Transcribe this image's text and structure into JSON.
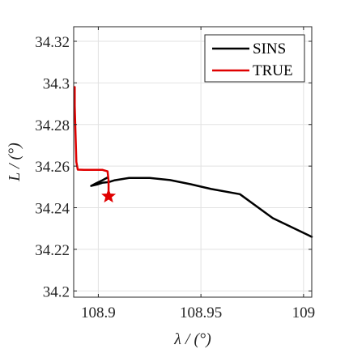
{
  "chart_data": {
    "type": "line",
    "title": "",
    "xlabel": "λ / (°)",
    "ylabel": "L / (°)",
    "xlim": [
      108.888,
      109.004
    ],
    "ylim": [
      34.197,
      34.327
    ],
    "xticks": [
      108.9,
      108.95,
      109
    ],
    "xtick_labels": [
      "108.9",
      "108.95",
      "109"
    ],
    "yticks": [
      34.2,
      34.22,
      34.24,
      34.26,
      34.28,
      34.3,
      34.32
    ],
    "ytick_labels": [
      "34.2",
      "34.22",
      "34.24",
      "34.26",
      "34.28",
      "34.3",
      "34.32"
    ],
    "grid": true,
    "legend_position": "top-right",
    "series": [
      {
        "name": "SINS",
        "color": "#000000",
        "x": [
          109.004,
          108.985,
          108.969,
          108.955,
          108.945,
          108.935,
          108.925,
          108.915,
          108.908,
          108.905,
          108.902,
          108.8995,
          108.8965,
          108.899,
          108.902,
          108.9045
        ],
        "y": [
          34.226,
          34.235,
          34.2465,
          34.249,
          34.2513,
          34.2533,
          34.2543,
          34.2543,
          34.2532,
          34.2523,
          34.252,
          34.2512,
          34.2505,
          34.2518,
          34.2532,
          34.2545
        ]
      },
      {
        "name": "TRUE",
        "color": "#e00000",
        "x": [
          108.8885,
          108.8885,
          108.889,
          108.8893,
          108.89,
          108.893,
          108.897,
          108.902,
          108.9045,
          108.905,
          108.905
        ],
        "y": [
          34.298,
          34.289,
          34.272,
          34.262,
          34.2583,
          34.2582,
          34.2582,
          34.2582,
          34.2575,
          34.253,
          34.246
        ]
      }
    ],
    "markers": [
      {
        "shape": "star",
        "color": "#e00000",
        "x": 108.905,
        "y": 34.2455
      }
    ]
  }
}
